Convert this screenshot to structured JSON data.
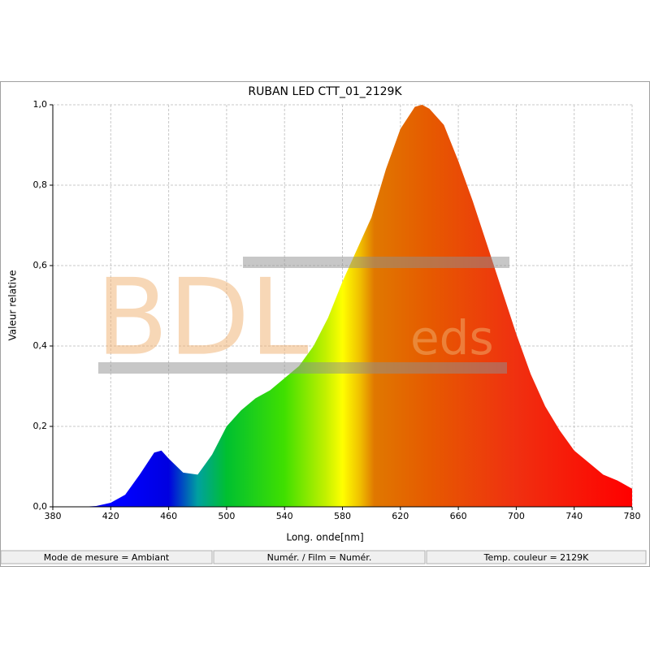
{
  "chart_data": {
    "type": "area",
    "title": "RUBAN LED CTT_01_2129K",
    "x_label": "Long. onde[nm]",
    "y_label": "Valeur relative",
    "x": [
      380,
      390,
      400,
      410,
      420,
      430,
      440,
      450,
      455,
      460,
      470,
      480,
      490,
      500,
      510,
      520,
      530,
      540,
      550,
      560,
      570,
      580,
      590,
      600,
      610,
      620,
      630,
      635,
      640,
      650,
      660,
      670,
      680,
      690,
      700,
      710,
      720,
      730,
      740,
      750,
      760,
      770,
      780
    ],
    "values": [
      0,
      0,
      0,
      0.002,
      0.01,
      0.03,
      0.08,
      0.135,
      0.14,
      0.12,
      0.085,
      0.08,
      0.13,
      0.2,
      0.24,
      0.27,
      0.29,
      0.32,
      0.35,
      0.4,
      0.47,
      0.56,
      0.64,
      0.72,
      0.84,
      0.94,
      0.995,
      1.0,
      0.99,
      0.95,
      0.86,
      0.76,
      0.65,
      0.54,
      0.43,
      0.33,
      0.25,
      0.19,
      0.14,
      0.11,
      0.08,
      0.065,
      0.045
    ],
    "xlim": [
      380,
      780
    ],
    "xticks": [
      380,
      420,
      460,
      500,
      540,
      580,
      620,
      660,
      700,
      740,
      780
    ],
    "ylim": [
      0,
      1
    ],
    "yticks": [
      {
        "value": 0,
        "label": "0,0"
      },
      {
        "value": 0.2,
        "label": "0,2"
      },
      {
        "value": 0.4,
        "label": "0,4"
      },
      {
        "value": 0.6,
        "label": "0,6"
      },
      {
        "value": 0.8,
        "label": "0,8"
      },
      {
        "value": 1,
        "label": "1,0"
      }
    ],
    "grid": true,
    "watermark": [
      "BDL",
      "eds"
    ],
    "status_bar": [
      "Mode de mesure = Ambiant",
      "Numér. / Film = Numér.",
      "Temp. couleur = 2129K"
    ]
  }
}
